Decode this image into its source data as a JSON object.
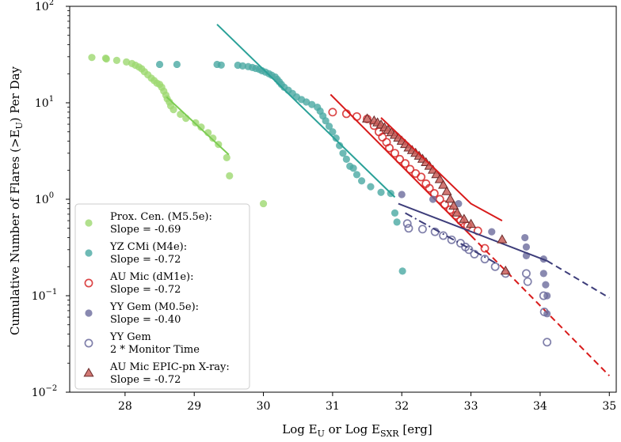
{
  "chart_data": {
    "type": "scatter",
    "title": "",
    "xlabel": "Log E",
    "xlabel_sub1": "U",
    "xlabel_mid": " or Log E",
    "xlabel_sub2": "SXR",
    "xlabel_tail": " [erg]",
    "ylabel": "Cumulative Number of Flares (>E",
    "ylabel_sub": "U",
    "ylabel_tail": ") Per Day",
    "xlim": [
      27.2,
      35.1
    ],
    "ylim": [
      0.01,
      100
    ],
    "yscale": "log",
    "grid": false,
    "legend_position": "lower-left",
    "x_ticks": [
      28,
      29,
      30,
      31,
      32,
      33,
      34,
      35
    ],
    "x_tick_labels": [
      "28",
      "29",
      "30",
      "31",
      "32",
      "33",
      "34",
      "35"
    ],
    "y_ticks": [
      0.01,
      0.1,
      1,
      10,
      100
    ],
    "y_tick_base": "10",
    "y_tick_exps": [
      "−2",
      "−1",
      "0",
      "1",
      "2"
    ],
    "series": [
      {
        "name": "Prox. Cen. (M5.5e):",
        "slope_text": "Slope = -0.69",
        "marker": "circle-filled",
        "color": "#9dd870",
        "points": [
          [
            27.52,
            29.5
          ],
          [
            27.72,
            29.0
          ],
          [
            27.73,
            28.5
          ],
          [
            27.88,
            27.5
          ],
          [
            28.02,
            26.5
          ],
          [
            28.1,
            25.5
          ],
          [
            28.15,
            24.5
          ],
          [
            28.2,
            23.5
          ],
          [
            28.24,
            22.5
          ],
          [
            28.28,
            21.0
          ],
          [
            28.33,
            19.5
          ],
          [
            28.38,
            18.0
          ],
          [
            28.42,
            17.0
          ],
          [
            28.46,
            16.0
          ],
          [
            28.5,
            15.5
          ],
          [
            28.53,
            14.5
          ],
          [
            28.56,
            13.2
          ],
          [
            28.59,
            12.0
          ],
          [
            28.61,
            11.0
          ],
          [
            28.64,
            10.2
          ],
          [
            28.66,
            9.3
          ],
          [
            28.7,
            8.5
          ],
          [
            28.8,
            7.6
          ],
          [
            28.88,
            6.9
          ],
          [
            29.02,
            6.2
          ],
          [
            29.1,
            5.6
          ],
          [
            29.2,
            4.9
          ],
          [
            29.27,
            4.3
          ],
          [
            29.35,
            3.7
          ],
          [
            29.47,
            2.7
          ],
          [
            29.51,
            1.75
          ],
          [
            30.0,
            0.9
          ]
        ],
        "fit_line": [
          [
            28.6,
            11.5
          ],
          [
            29.5,
            2.9
          ]
        ]
      },
      {
        "name": "YZ CMi (M4e):",
        "slope_text": "Slope = -0.72",
        "marker": "circle-filled",
        "color": "#4aa9a2",
        "points": [
          [
            28.5,
            25
          ],
          [
            28.75,
            25
          ],
          [
            29.33,
            25
          ],
          [
            29.39,
            24.6
          ],
          [
            29.63,
            24.5
          ],
          [
            29.7,
            24.1
          ],
          [
            29.78,
            23.7
          ],
          [
            29.84,
            23.2
          ],
          [
            29.89,
            22.7
          ],
          [
            29.94,
            22.2
          ],
          [
            29.98,
            21.5
          ],
          [
            30.03,
            20.8
          ],
          [
            30.08,
            20.0
          ],
          [
            30.12,
            19.3
          ],
          [
            30.17,
            18.5
          ],
          [
            30.2,
            17.5
          ],
          [
            30.23,
            16.5
          ],
          [
            30.26,
            15.5
          ],
          [
            30.3,
            14.5
          ],
          [
            30.36,
            13.5
          ],
          [
            30.42,
            12.5
          ],
          [
            30.48,
            11.5
          ],
          [
            30.55,
            10.8
          ],
          [
            30.62,
            10.2
          ],
          [
            30.7,
            9.6
          ],
          [
            30.78,
            9.0
          ],
          [
            30.82,
            8.2
          ],
          [
            30.86,
            7.3
          ],
          [
            30.9,
            6.5
          ],
          [
            30.95,
            5.7
          ],
          [
            31.0,
            5.0
          ],
          [
            31.05,
            4.3
          ],
          [
            31.1,
            3.6
          ],
          [
            31.15,
            3.0
          ],
          [
            31.2,
            2.6
          ],
          [
            31.25,
            2.2
          ],
          [
            31.3,
            2.1
          ],
          [
            31.35,
            1.8
          ],
          [
            31.42,
            1.55
          ],
          [
            31.55,
            1.35
          ],
          [
            31.7,
            1.18
          ],
          [
            31.84,
            1.15
          ],
          [
            31.9,
            0.72
          ],
          [
            31.93,
            0.58
          ],
          [
            32.01,
            0.18
          ]
        ],
        "fit_line": [
          [
            29.33,
            65
          ],
          [
            31.9,
            1.05
          ]
        ]
      },
      {
        "name": "AU Mic (dM1e):",
        "slope_text": "Slope = -0.72",
        "marker": "circle-open",
        "color": "#d62728",
        "points": [
          [
            31.0,
            8.0
          ],
          [
            31.2,
            7.7
          ],
          [
            31.35,
            7.2
          ],
          [
            31.5,
            6.8
          ],
          [
            31.6,
            5.8
          ],
          [
            31.67,
            5.0
          ],
          [
            31.72,
            4.4
          ],
          [
            31.78,
            3.9
          ],
          [
            31.82,
            3.4
          ],
          [
            31.9,
            3.0
          ],
          [
            31.97,
            2.6
          ],
          [
            32.05,
            2.35
          ],
          [
            32.12,
            2.05
          ],
          [
            32.2,
            1.85
          ],
          [
            32.28,
            1.7
          ],
          [
            32.35,
            1.45
          ],
          [
            32.4,
            1.3
          ],
          [
            32.47,
            1.15
          ],
          [
            32.55,
            1.0
          ],
          [
            32.62,
            0.88
          ],
          [
            32.7,
            0.78
          ],
          [
            32.78,
            0.68
          ],
          [
            32.85,
            0.6
          ],
          [
            32.95,
            0.53
          ],
          [
            33.1,
            0.47
          ],
          [
            33.2,
            0.31
          ]
        ],
        "fit_line": [
          [
            30.97,
            12.2
          ],
          [
            33.0,
            0.42
          ]
        ],
        "extrapolation": [
          [
            33.0,
            0.42
          ],
          [
            35.0,
            0.0148
          ]
        ]
      },
      {
        "name": "YY Gem (M0.5e):",
        "slope_text": "Slope = -0.40",
        "marker": "circle-filled",
        "color": "#6b6b9c",
        "points": [
          [
            32.0,
            1.12
          ],
          [
            32.45,
            1.0
          ],
          [
            32.82,
            0.9
          ],
          [
            33.3,
            0.46
          ],
          [
            33.78,
            0.4
          ],
          [
            33.8,
            0.32
          ],
          [
            33.8,
            0.26
          ],
          [
            34.05,
            0.24
          ],
          [
            34.05,
            0.17
          ],
          [
            34.08,
            0.13
          ],
          [
            34.1,
            0.1
          ],
          [
            34.1,
            0.065
          ]
        ],
        "fit_line": [
          [
            31.95,
            0.9
          ],
          [
            34.1,
            0.23
          ]
        ],
        "extrapolation": [
          [
            34.1,
            0.23
          ],
          [
            35.0,
            0.095
          ]
        ]
      },
      {
        "name": "YY Gem",
        "name_line2": "2 * Monitor Time",
        "marker": "circle-open",
        "color": "#6b6b9c",
        "points": [
          [
            32.08,
            0.56
          ],
          [
            32.1,
            0.5
          ],
          [
            32.3,
            0.49
          ],
          [
            32.48,
            0.46
          ],
          [
            32.6,
            0.42
          ],
          [
            32.72,
            0.38
          ],
          [
            32.85,
            0.35
          ],
          [
            32.92,
            0.32
          ],
          [
            32.97,
            0.3
          ],
          [
            33.05,
            0.27
          ],
          [
            33.2,
            0.24
          ],
          [
            33.35,
            0.2
          ],
          [
            33.5,
            0.17
          ],
          [
            33.8,
            0.17
          ],
          [
            33.82,
            0.14
          ],
          [
            34.05,
            0.1
          ],
          [
            34.06,
            0.068
          ],
          [
            34.1,
            0.033
          ]
        ],
        "fit_line": [
          [
            32.05,
            0.72
          ],
          [
            33.4,
            0.21
          ]
        ],
        "fit_style": "dashdot"
      },
      {
        "name": "AU Mic EPIC-pn X-ray:",
        "slope_text": "Slope = -0.72",
        "marker": "triangle",
        "color": "#6b2a2a",
        "fill": "#c9605c",
        "points": [
          [
            31.5,
            6.8
          ],
          [
            31.6,
            6.5
          ],
          [
            31.65,
            6.2
          ],
          [
            31.7,
            5.9
          ],
          [
            31.75,
            5.5
          ],
          [
            31.8,
            5.2
          ],
          [
            31.85,
            4.9
          ],
          [
            31.9,
            4.6
          ],
          [
            31.95,
            4.3
          ],
          [
            32.0,
            4.0
          ],
          [
            32.05,
            3.7
          ],
          [
            32.1,
            3.4
          ],
          [
            32.15,
            3.2
          ],
          [
            32.2,
            3.0
          ],
          [
            32.25,
            2.8
          ],
          [
            32.3,
            2.6
          ],
          [
            32.35,
            2.4
          ],
          [
            32.4,
            2.2
          ],
          [
            32.45,
            2.0
          ],
          [
            32.5,
            1.8
          ],
          [
            32.55,
            1.6
          ],
          [
            32.6,
            1.4
          ],
          [
            32.65,
            1.2
          ],
          [
            32.7,
            1.0
          ],
          [
            32.75,
            0.85
          ],
          [
            32.8,
            0.72
          ],
          [
            32.9,
            0.62
          ],
          [
            33.0,
            0.55
          ],
          [
            33.45,
            0.38
          ],
          [
            33.5,
            0.18
          ]
        ],
        "fit_line": [
          [
            31.7,
            7.0
          ],
          [
            32.5,
            2.0
          ],
          [
            33.0,
            0.9
          ],
          [
            33.45,
            0.6
          ]
        ]
      }
    ]
  }
}
